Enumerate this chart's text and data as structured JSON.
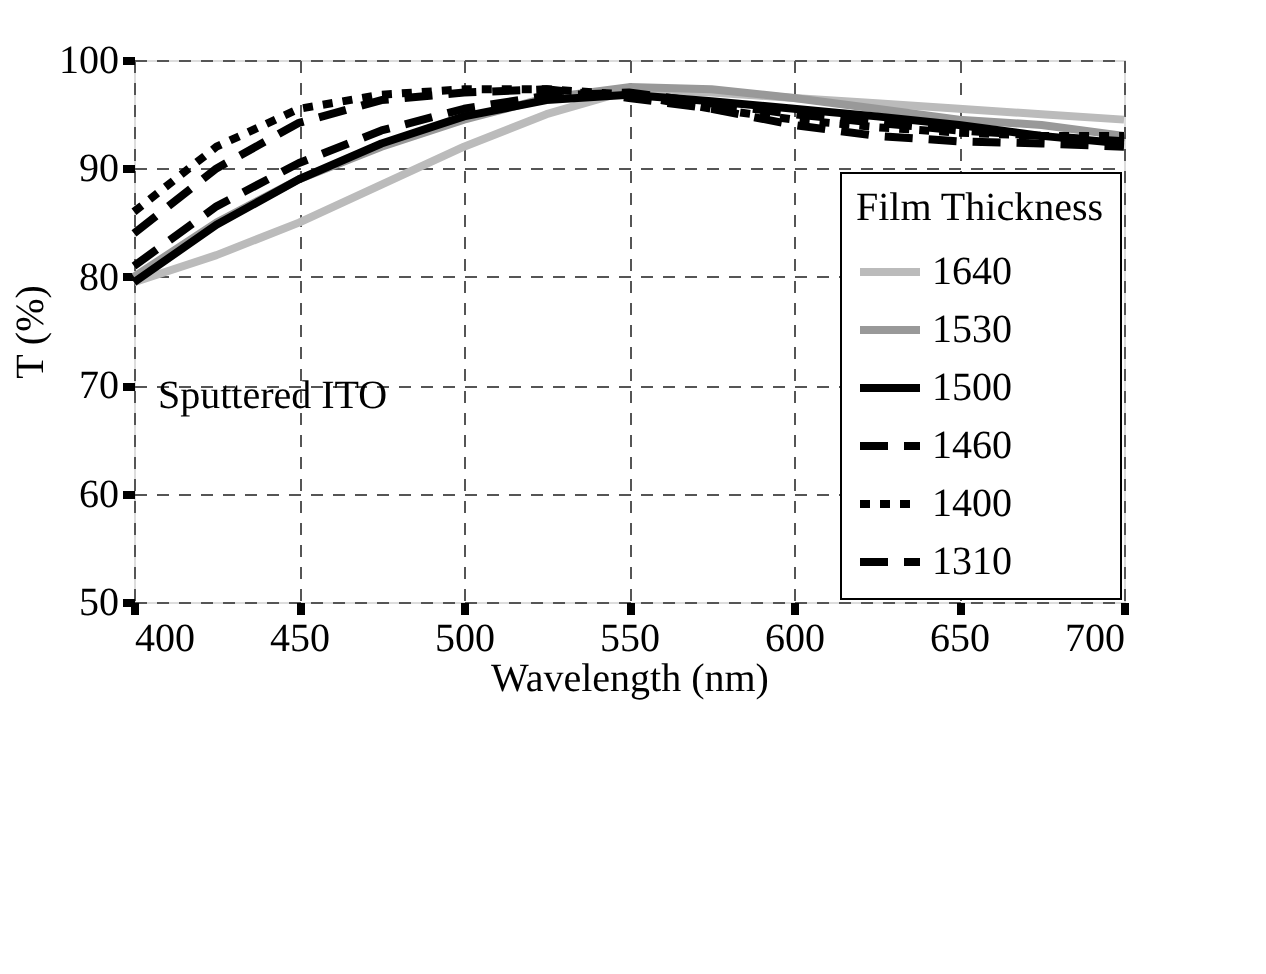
{
  "chart_data": {
    "type": "line",
    "xlabel": "Wavelength (nm)",
    "ylabel": "T (%)",
    "legend_title": "Film Thickness",
    "annotations": [
      "Sputtered ITO"
    ],
    "x": [
      400,
      425,
      450,
      475,
      500,
      525,
      550,
      575,
      600,
      625,
      650,
      675,
      700
    ],
    "xlim": [
      400,
      700
    ],
    "xticks": [
      400,
      450,
      500,
      550,
      600,
      650,
      700
    ],
    "ylim": [
      50,
      100
    ],
    "yticks": [
      50,
      60,
      70,
      80,
      90,
      100
    ],
    "grid": true,
    "legend": "bottom right",
    "marker": "none",
    "series": [
      {
        "name": "1640",
        "color": "#bbbbbb",
        "line_style": "solid",
        "values": [
          79.5,
          82,
          85,
          88.5,
          92,
          95,
          97.2,
          97,
          96.5,
          96,
          95.5,
          95,
          94.5
        ]
      },
      {
        "name": "1530",
        "color": "#999999",
        "line_style": "solid",
        "values": [
          80,
          85,
          89,
          92,
          94.5,
          96.5,
          97.5,
          97.3,
          96.5,
          95.5,
          94.5,
          94,
          93
        ]
      },
      {
        "name": "1500",
        "color": "#000000",
        "line_style": "solid",
        "values": [
          79.5,
          84.8,
          89,
          92.3,
          94.8,
          96.3,
          96.8,
          96.2,
          95.5,
          94.8,
          94,
          93,
          92.3
        ]
      },
      {
        "name": "1460",
        "color": "#000000",
        "line_style": "dashed",
        "values": [
          81,
          86.5,
          90.5,
          93.5,
          95.5,
          96.7,
          97,
          96,
          95,
          94.2,
          93.5,
          93,
          92.5
        ]
      },
      {
        "name": "1400",
        "color": "#000000",
        "line_style": "dotted",
        "values": [
          86,
          92,
          95.5,
          96.8,
          97.3,
          97.3,
          96.8,
          95.5,
          94.5,
          93.8,
          93.3,
          93,
          93
        ]
      },
      {
        "name": "1310",
        "color": "#000000",
        "line_style": "dashed",
        "values": [
          84,
          90,
          94.2,
          96.3,
          97,
          97.3,
          96.5,
          95.5,
          94,
          93,
          92.5,
          92.3,
          92
        ]
      }
    ]
  }
}
